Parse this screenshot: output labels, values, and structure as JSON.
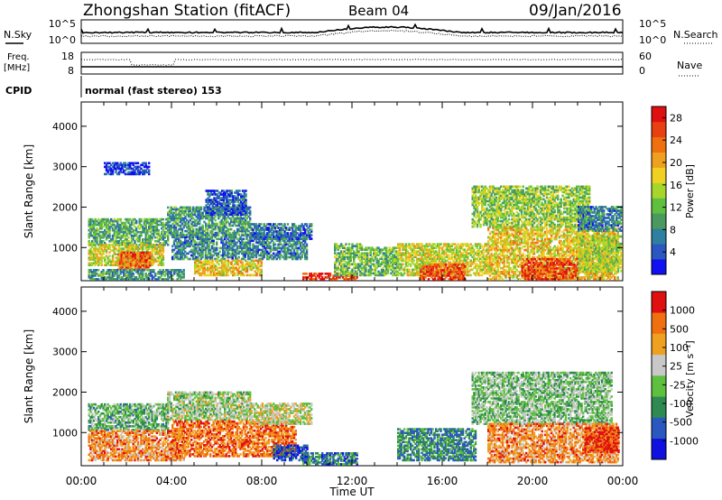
{
  "header": {
    "station": "Zhongshan Station (fitACF)",
    "beam": "Beam 04",
    "date": "09/Jan/2016"
  },
  "top_panels": {
    "nsky_label": "N.Sky",
    "nsky_top": "10^5",
    "nsky_bottom": "10^0",
    "nsearch_label": "N.Search",
    "nsearch_top": "10^5",
    "nsearch_bottom": "10^0",
    "freq_label_1": "Freq.",
    "freq_label_2": "[MHz]",
    "freq_top": "18",
    "freq_bottom": "8",
    "nave_label": "Nave",
    "nave_top": "60",
    "nave_bottom": "0",
    "cpid_label": "CPID",
    "cpid_text": "normal (fast stereo) 153"
  },
  "chart_data": [
    {
      "type": "heatmap",
      "title": "",
      "xlabel": "",
      "ylabel": "Slant Range [km]",
      "x_ticks": [
        "00:00",
        "04:00",
        "08:00",
        "12:00",
        "16:00",
        "20:00",
        "00:00"
      ],
      "xlim": [
        0,
        24
      ],
      "y_ticks": [
        "1000",
        "2000",
        "3000",
        "4000"
      ],
      "ylim": [
        180,
        4600
      ],
      "colorbar": {
        "label": "Power [dB]",
        "ticks": [
          "4",
          "8",
          "12",
          "16",
          "20",
          "24",
          "28"
        ],
        "range": [
          0,
          30
        ],
        "colors": [
          "#1010f0",
          "#2a58c0",
          "#2e7fa0",
          "#4a9a60",
          "#5fbf3f",
          "#a6d62b",
          "#f0d020",
          "#f0a020",
          "#f07010",
          "#e84010",
          "#e01010"
        ]
      },
      "regions": [
        {
          "x": [
            0.3,
            3.8
          ],
          "y": [
            1050,
            1700
          ],
          "level": 0.35
        },
        {
          "x": [
            0.3,
            3.6
          ],
          "y": [
            550,
            1050
          ],
          "level": 0.55
        },
        {
          "x": [
            1.6,
            3.0
          ],
          "y": [
            450,
            900
          ],
          "level": 0.8
        },
        {
          "x": [
            0.3,
            4.5
          ],
          "y": [
            200,
            450
          ],
          "level": 0.3
        },
        {
          "x": [
            3.8,
            7.5
          ],
          "y": [
            1300,
            2000
          ],
          "level": 0.3
        },
        {
          "x": [
            5.5,
            7.3
          ],
          "y": [
            1800,
            2400
          ],
          "level": 0.15
        },
        {
          "x": [
            4.0,
            10.0
          ],
          "y": [
            700,
            1300
          ],
          "level": 0.25
        },
        {
          "x": [
            5.0,
            8.0
          ],
          "y": [
            300,
            700
          ],
          "level": 0.6
        },
        {
          "x": [
            7.5,
            10.2
          ],
          "y": [
            1200,
            1600
          ],
          "level": 0.2
        },
        {
          "x": [
            9.8,
            12.2
          ],
          "y": [
            200,
            380
          ],
          "level": 0.9
        },
        {
          "x": [
            11.2,
            12.4
          ],
          "y": [
            300,
            1100
          ],
          "level": 0.4
        },
        {
          "x": [
            12.5,
            14.0
          ],
          "y": [
            300,
            1000
          ],
          "level": 0.4
        },
        {
          "x": [
            14.0,
            18.0
          ],
          "y": [
            300,
            1100
          ],
          "level": 0.55
        },
        {
          "x": [
            15.0,
            17.0
          ],
          "y": [
            200,
            600
          ],
          "level": 0.85
        },
        {
          "x": [
            17.3,
            22.5
          ],
          "y": [
            1500,
            2500
          ],
          "level": 0.45
        },
        {
          "x": [
            18.0,
            23.8
          ],
          "y": [
            200,
            1500
          ],
          "level": 0.6
        },
        {
          "x": [
            19.5,
            22.0
          ],
          "y": [
            200,
            700
          ],
          "level": 0.85
        },
        {
          "x": [
            22.0,
            23.9
          ],
          "y": [
            400,
            1300
          ],
          "level": 0.5
        },
        {
          "x": [
            22.0,
            23.9
          ],
          "y": [
            1400,
            2000
          ],
          "level": 0.25
        },
        {
          "x": [
            1.0,
            3.0
          ],
          "y": [
            2800,
            3100
          ],
          "level": 0.1
        }
      ]
    },
    {
      "type": "heatmap",
      "title": "",
      "xlabel": "Time UT",
      "ylabel": "Slant Range [km]",
      "x_ticks": [
        "00:00",
        "04:00",
        "08:00",
        "12:00",
        "16:00",
        "20:00",
        "00:00"
      ],
      "xlim": [
        0,
        24
      ],
      "y_ticks": [
        "1000",
        "2000",
        "3000",
        "4000"
      ],
      "ylim": [
        180,
        4600
      ],
      "colorbar": {
        "label": "Velocity [m s⁻¹]",
        "ticks": [
          "1000",
          "500",
          "100",
          "25",
          "-25",
          "-100",
          "-500",
          "-1000"
        ],
        "colors": [
          "#1010e0",
          "#2a58c0",
          "#2e8a50",
          "#5fbf3f",
          "#c8c8c8",
          "#f0a020",
          "#f07010",
          "#e01010"
        ]
      },
      "regions": [
        {
          "x": [
            0.3,
            3.8
          ],
          "y": [
            1050,
            1700
          ],
          "level": 0.4
        },
        {
          "x": [
            0.3,
            4.5
          ],
          "y": [
            300,
            1050
          ],
          "level": 0.75
        },
        {
          "x": [
            3.8,
            7.5
          ],
          "y": [
            1300,
            2000
          ],
          "level": 0.5
        },
        {
          "x": [
            4.0,
            9.5
          ],
          "y": [
            400,
            1300
          ],
          "level": 0.8
        },
        {
          "x": [
            7.5,
            10.2
          ],
          "y": [
            1200,
            1700
          ],
          "level": 0.55
        },
        {
          "x": [
            9.8,
            12.2
          ],
          "y": [
            200,
            500
          ],
          "level": 0.25
        },
        {
          "x": [
            8.5,
            10.0
          ],
          "y": [
            300,
            700
          ],
          "level": 0.15
        },
        {
          "x": [
            14.0,
            17.5
          ],
          "y": [
            300,
            1100
          ],
          "level": 0.3
        },
        {
          "x": [
            17.3,
            23.5
          ],
          "y": [
            1200,
            2500
          ],
          "level": 0.45
        },
        {
          "x": [
            18.0,
            23.8
          ],
          "y": [
            250,
            1200
          ],
          "level": 0.75
        },
        {
          "x": [
            22.3,
            23.8
          ],
          "y": [
            500,
            1100
          ],
          "level": 0.9
        }
      ]
    }
  ]
}
